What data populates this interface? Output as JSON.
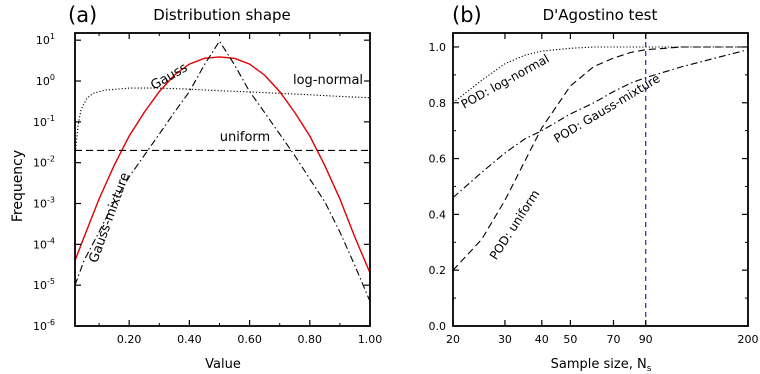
{
  "panels": [
    {
      "tag": "(a)",
      "title": "Distribution shape"
    },
    {
      "tag": "(b)",
      "title": "D'Agostino test"
    }
  ],
  "colors": {
    "red": "#e00000",
    "blue": "#3333cc",
    "black": "#000000"
  },
  "chart_data": [
    {
      "type": "line",
      "title": "Distribution shape",
      "xlabel": "Value",
      "ylabel": "Frequency",
      "xlim": [
        0.02,
        1.0
      ],
      "ylim": [
        1e-06,
        15
      ],
      "yscale": "log",
      "xticks": [
        0.2,
        0.4,
        0.6,
        0.8,
        1.0
      ],
      "xtick_labels": [
        "0.20",
        "0.40",
        "0.60",
        "0.80",
        "1.00"
      ],
      "yticks_exp": [
        -6,
        -5,
        -4,
        -3,
        -2,
        -1,
        0,
        1
      ],
      "ytick_base": "10",
      "series": [
        {
          "name": "Gauss",
          "label": "Gauss",
          "style": "solid",
          "color": "#e00000",
          "x": [
            0.02,
            0.05,
            0.1,
            0.15,
            0.2,
            0.25,
            0.3,
            0.35,
            0.4,
            0.45,
            0.5,
            0.55,
            0.6,
            0.65,
            0.7,
            0.75,
            0.8,
            0.85,
            0.9,
            0.95,
            1.0
          ],
          "y": [
            4e-05,
            0.00015,
            0.0013,
            0.0085,
            0.045,
            0.17,
            0.55,
            1.4,
            2.6,
            3.6,
            3.9,
            3.6,
            2.6,
            1.4,
            0.55,
            0.17,
            0.045,
            0.0085,
            0.0013,
            0.00015,
            2e-05
          ]
        },
        {
          "name": "log-normal",
          "label": "log-normal",
          "style": "dotted",
          "color": "#000000",
          "x": [
            0.02,
            0.03,
            0.04,
            0.06,
            0.08,
            0.12,
            0.2,
            0.3,
            0.4,
            0.5,
            0.6,
            0.7,
            0.8,
            0.9,
            1.0
          ],
          "y": [
            0.015,
            0.08,
            0.2,
            0.38,
            0.5,
            0.6,
            0.67,
            0.67,
            0.63,
            0.58,
            0.54,
            0.5,
            0.46,
            0.42,
            0.39
          ]
        },
        {
          "name": "uniform",
          "label": "uniform",
          "style": "dashed",
          "color": "#000000",
          "x": [
            0.02,
            1.0
          ],
          "y": [
            0.02,
            0.02
          ]
        },
        {
          "name": "Gauss-mixture",
          "label": "Gauss-mixture",
          "style": "dashdot",
          "color": "#000000",
          "x": [
            0.02,
            0.05,
            0.1,
            0.15,
            0.2,
            0.25,
            0.3,
            0.35,
            0.4,
            0.45,
            0.5,
            0.55,
            0.6,
            0.65,
            0.7,
            0.75,
            0.8,
            0.85,
            0.9,
            0.95,
            1.0
          ],
          "y": [
            1e-05,
            4e-05,
            0.0002,
            0.0011,
            0.0045,
            0.015,
            0.05,
            0.17,
            0.55,
            2.5,
            9.5,
            2.5,
            0.55,
            0.17,
            0.05,
            0.015,
            0.004,
            0.0011,
            0.0002,
            3e-05,
            4e-06
          ]
        }
      ]
    },
    {
      "type": "line",
      "title": "D'Agostino test",
      "xlabel": "Sample size, N",
      "xlabel_sub": "s",
      "xlim": [
        20,
        200
      ],
      "ylim": [
        0,
        1.05
      ],
      "xscale": "log",
      "xticks": [
        20,
        30,
        40,
        50,
        70,
        90,
        200
      ],
      "yticks": [
        0.0,
        0.2,
        0.4,
        0.6,
        0.8,
        1.0
      ],
      "ytick_labels": [
        "0.0",
        "0.2",
        "0.4",
        "0.6",
        "0.8",
        "1.0"
      ],
      "vline": {
        "x": 90,
        "style": "dashed",
        "color": "#3333cc"
      },
      "series": [
        {
          "name": "POD: log-normal",
          "label": "POD: log-normal",
          "style": "dotted",
          "color": "#000000",
          "x": [
            20,
            25,
            30,
            35,
            40,
            50,
            60,
            70,
            80,
            90,
            120,
            200
          ],
          "y": [
            0.8,
            0.88,
            0.94,
            0.97,
            0.985,
            0.995,
            1.0,
            1.0,
            1.0,
            1.0,
            1.0,
            1.0
          ]
        },
        {
          "name": "POD: uniform",
          "label": "POD: uniform",
          "style": "dashed",
          "color": "#000000",
          "x": [
            20,
            25,
            30,
            35,
            40,
            50,
            60,
            70,
            80,
            90,
            120,
            200
          ],
          "y": [
            0.2,
            0.31,
            0.45,
            0.59,
            0.71,
            0.86,
            0.93,
            0.96,
            0.98,
            0.99,
            1.0,
            1.0
          ]
        },
        {
          "name": "POD: Gauss-mixture",
          "label": "POD: Gauss-mixture",
          "style": "dashdot",
          "color": "#000000",
          "x": [
            20,
            25,
            30,
            35,
            40,
            50,
            60,
            70,
            80,
            90,
            120,
            200
          ],
          "y": [
            0.46,
            0.55,
            0.62,
            0.67,
            0.7,
            0.76,
            0.8,
            0.84,
            0.87,
            0.89,
            0.93,
            0.99
          ]
        }
      ]
    }
  ]
}
